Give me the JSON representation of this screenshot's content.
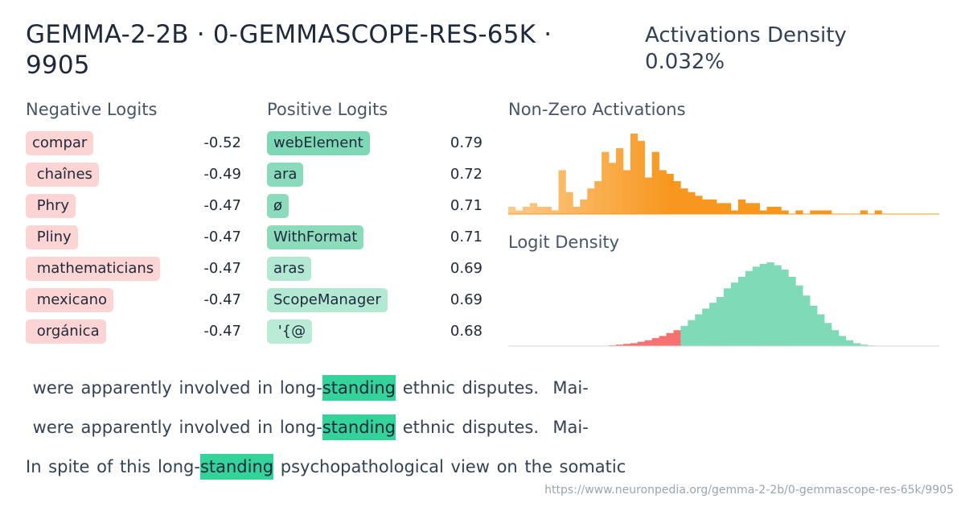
{
  "header": {
    "title": "GEMMA-2-2B · 0-GEMMASCOPE-RES-65K · 9905",
    "density_label": "Activations Density",
    "density_value": "0.032%"
  },
  "negative_logits": {
    "heading": "Negative Logits",
    "items": [
      {
        "token": "compar",
        "value": "-0.52"
      },
      {
        "token": " chaînes",
        "value": "-0.49"
      },
      {
        "token": " Phry",
        "value": "-0.47"
      },
      {
        "token": " Pliny",
        "value": "-0.47"
      },
      {
        "token": " mathematicians",
        "value": "-0.47"
      },
      {
        "token": " mexicano",
        "value": "-0.47"
      },
      {
        "token": " orgánica",
        "value": "-0.47"
      }
    ]
  },
  "positive_logits": {
    "heading": "Positive Logits",
    "items": [
      {
        "token": "webElement",
        "value": "0.79",
        "color": "#7fd8b5"
      },
      {
        "token": "ara",
        "value": "0.72",
        "color": "#8adbbb"
      },
      {
        "token": "ø",
        "value": "0.71",
        "color": "#8cdcbc"
      },
      {
        "token": "WithFormat",
        "value": "0.71",
        "color": "#8cdcbc"
      },
      {
        "token": "aras",
        "value": "0.69",
        "color": "#b3e9d3"
      },
      {
        "token": "ScopeManager",
        "value": "0.69",
        "color": "#b3e9d3"
      },
      {
        "token": " '{@",
        "value": "0.68",
        "color": "#b9ebd6"
      }
    ]
  },
  "nonzero_activations": {
    "heading": "Non-Zero Activations",
    "colors": {
      "start": "#fdca8a",
      "end": "#f7971e"
    },
    "bars": [
      2,
      1,
      2,
      3,
      2,
      2,
      1,
      12,
      6,
      2,
      4,
      7,
      9,
      17,
      14,
      18,
      12,
      22,
      20,
      10,
      17,
      12,
      11,
      9,
      7,
      6,
      5,
      4,
      4,
      3,
      3,
      1,
      4,
      3,
      3,
      1,
      2,
      2,
      1,
      0,
      1,
      0,
      1,
      1,
      1,
      0,
      0,
      0,
      0,
      1,
      0,
      1,
      0,
      0,
      0,
      0,
      0,
      0,
      0,
      0
    ]
  },
  "logit_density": {
    "heading": "Logit Density",
    "colors": {
      "negative": "#f87171",
      "positive": "#7fdab8"
    },
    "bars": [
      0,
      0,
      0,
      0,
      0,
      0,
      0,
      0,
      0,
      0,
      0,
      0,
      0,
      0.2,
      0.5,
      1,
      1.5,
      2,
      3,
      4,
      5.5,
      7,
      9,
      11,
      14,
      18,
      22,
      26,
      30,
      34,
      40,
      44,
      48,
      52,
      55,
      57,
      58,
      56,
      53,
      48,
      42,
      35,
      28,
      22,
      16,
      11,
      7,
      4,
      2,
      1,
      0.4,
      0.2,
      0,
      0,
      0,
      0,
      0,
      0,
      0,
      0
    ]
  },
  "examples": [
    {
      "pre": " were apparently involved in long-",
      "highlight": "standing",
      "post": " ethnic disputes.  Mai-"
    },
    {
      "pre": " were apparently involved in long-",
      "highlight": "standing",
      "post": " ethnic disputes.  Mai-"
    },
    {
      "pre": "In spite of this long-",
      "highlight": "standing",
      "post": " psychopathological view on the somatic"
    }
  ],
  "footer": {
    "url": "https://www.neuronpedia.org/gemma-2-2b/0-gemmascope-res-65k/9905"
  }
}
